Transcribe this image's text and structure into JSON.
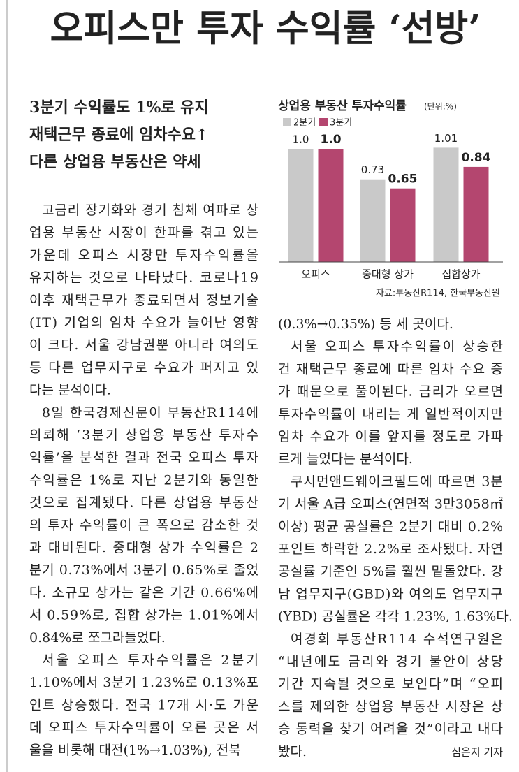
{
  "headline": "오피스만 투자 수익률 ‘선방’",
  "subheads": [
    "3분기 수익률도 1%로 유지",
    "재택근무 종료에 임차수요↑",
    "다른 상업용 부동산은 약세"
  ],
  "columns": [
    [
      [
        "고금리 장기화와 경기 침체 여파로 상",
        "업용 부동산 시장이 한파를 겪고 있는",
        "가운데 오피스 시장만 투자수익률을",
        "유지하는 것으로 나타났다. 코로나19",
        "이후 재택근무가 종료되면서 정보기술",
        "(IT) 기업의 임차 수요가 늘어난 영향",
        "이 크다. 서울 강남권뿐 아니라 여의도",
        "등 다른 업무지구로 수요가 퍼지고 있",
        "다는 분석이다."
      ],
      [
        "8일 한국경제신문이 부동산R114에",
        "의뢰해 ‘3분기 상업용 부동산 투자수",
        "익률’을 분석한 결과 전국 오피스 투자",
        "수익률은 1%로 지난 2분기와 동일한",
        "것으로 집계됐다. 다른 상업용 부동산",
        "의 투자 수익률이 큰 폭으로 감소한 것",
        "과 대비된다. 중대형 상가 수익률은 2",
        "분기 0.73%에서 3분기 0.65%로 줄었",
        "다. 소규모 상가는 같은 기간 0.66%에",
        "서 0.59%로, 집합 상가는 1.01%에서",
        "0.84%로 쪼그라들었다."
      ],
      [
        "서울 오피스 투자수익률은 2분기",
        "1.10%에서 3분기 1.23%로 0.13%포",
        "인트 상승했다. 전국 17개 시·도 가운",
        "데 오피스 투자수익률이 오른 곳은 서",
        "울을 비롯해 대전(1%→1.03%), 전북"
      ]
    ],
    [
      [
        "(0.3%→0.35%) 등 세 곳이다."
      ],
      [
        "서울 오피스 투자수익률이 상승한",
        "건 재택근무 종료에 따른 임차 수요 증",
        "가 때문으로 풀이된다. 금리가 오르면",
        "투자수익률이 내리는 게 일반적이지만",
        "임차 수요가 이를 앞지를 정도로 가파",
        "르게 늘었다는 분석이다."
      ],
      [
        "쿠시먼앤드웨이크필드에 따르면 3분",
        "기 서울 A급 오피스(연면적 3만3058㎡",
        "이상) 평균 공실률은 2분기 대비 0.2%",
        "포인트 하락한 2.2%로 조사됐다. 자연",
        "공실률 기준인 5%를 훨씬 밑돌았다. 강",
        "남 업무지구(GBD)와 여의도 업무지구",
        "(YBD) 공실률은 각각 1.23%, 1.63%다."
      ],
      [
        "여경희 부동산R114 수석연구원은",
        "“내년에도 금리와 경기 불안이 상당",
        "기간 지속될 것으로 보인다”며 “오피",
        "스를 제외한 상업용 부동산 시장은 상",
        "승 동력을 찾기 어려울 것”이라고 내다",
        "봤다."
      ]
    ]
  ],
  "byline": "심은지 기자",
  "chart_data": {
    "type": "bar",
    "title": "상업용 부동산 투자수익률",
    "unit": "(단위:%)",
    "categories": [
      "오피스",
      "중대형 상가",
      "집합상가"
    ],
    "series": [
      {
        "name": "2분기",
        "color": "#c9c9c9",
        "values": [
          1.0,
          0.73,
          1.01
        ],
        "value_labels": [
          "1.0",
          "0.73",
          "1.01"
        ]
      },
      {
        "name": "3분기",
        "color": "#b4466f",
        "values": [
          1.0,
          0.65,
          0.84
        ],
        "value_labels": [
          "1.0",
          "0.65",
          "0.84"
        ]
      }
    ],
    "source": "자료:부동산R114, 한국부동산원"
  }
}
